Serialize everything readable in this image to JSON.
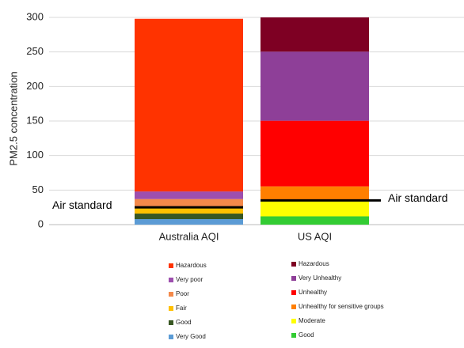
{
  "chart_data": {
    "type": "stacked_bar",
    "y_label": "PM2.5 concentration",
    "categories": [
      "Australia AQI",
      "US AQI"
    ],
    "ylim": [
      0,
      300
    ],
    "yticks": [
      0,
      50,
      100,
      150,
      200,
      250,
      300
    ],
    "grid": true,
    "series": [
      {
        "name": "Very Good",
        "color": "#5b9bd5",
        "values": [
          8,
          null
        ]
      },
      {
        "name": "Good",
        "color": "#385723",
        "values": [
          8,
          null
        ]
      },
      {
        "name": "Fair",
        "color": "#ffc000",
        "values": [
          9,
          null
        ]
      },
      {
        "name": "Poor",
        "color": "#f4894a",
        "values": [
          12,
          null
        ]
      },
      {
        "name": "Very poor",
        "color": "#9d4fae",
        "values": [
          11,
          null
        ]
      },
      {
        "name": "Hazardous",
        "color": "#ff3300",
        "values": [
          250,
          null
        ]
      },
      {
        "name": "Good",
        "color": "#33cc33",
        "values": [
          null,
          12
        ]
      },
      {
        "name": "Moderate",
        "color": "#ffff00",
        "values": [
          null,
          23.4
        ]
      },
      {
        "name": "Unhealthy for sensitive groups",
        "color": "#ff7f00",
        "values": [
          null,
          20
        ]
      },
      {
        "name": "Unhealthy",
        "color": "#ff0000",
        "values": [
          null,
          95
        ]
      },
      {
        "name": "Very Unhealthy",
        "color": "#8e3f98",
        "values": [
          null,
          100
        ]
      },
      {
        "name": "Hazardous",
        "color": "#7e0023",
        "values": [
          null,
          49.6
        ]
      }
    ],
    "air_standard": {
      "label": "Air standard",
      "color": "#000000",
      "values": [
        25,
        35
      ]
    }
  }
}
